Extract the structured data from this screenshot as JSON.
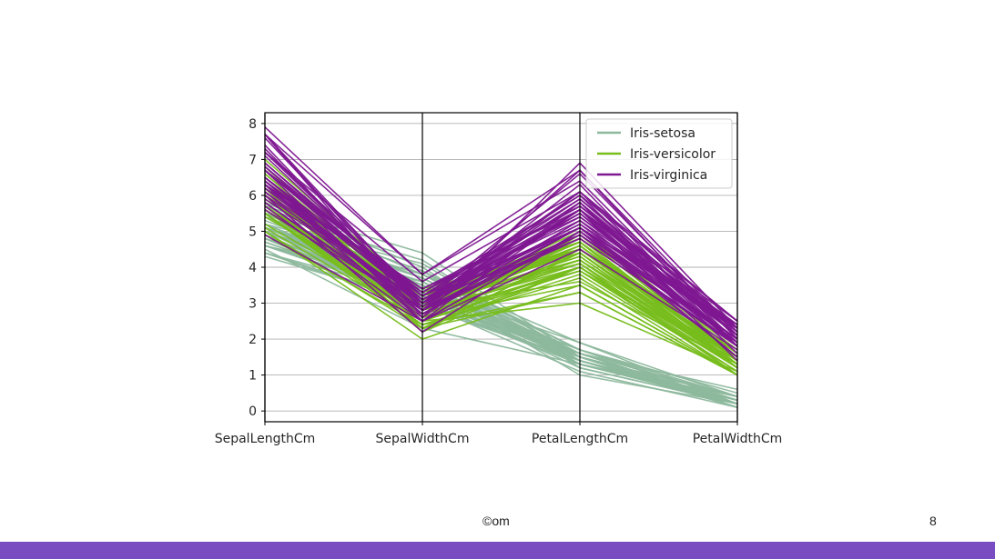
{
  "slide": {
    "footer_text": "©om",
    "page_number": "8",
    "bar_color": "#7a4cc2"
  },
  "chart_data": {
    "type": "parallel_coordinates",
    "axes": [
      "SepalLengthCm",
      "SepalWidthCm",
      "PetalLengthCm",
      "PetalWidthCm"
    ],
    "ylim": [
      -0.3,
      8.3
    ],
    "yticks": [
      0,
      1,
      2,
      3,
      4,
      5,
      6,
      7,
      8
    ],
    "grid": true,
    "legend_position": "top-right",
    "series": [
      {
        "name": "Iris-setosa",
        "color": "#8db89d",
        "lines": [
          [
            5.1,
            3.5,
            1.4,
            0.2
          ],
          [
            4.9,
            3.0,
            1.4,
            0.2
          ],
          [
            4.7,
            3.2,
            1.3,
            0.2
          ],
          [
            4.6,
            3.1,
            1.5,
            0.2
          ],
          [
            5.0,
            3.6,
            1.4,
            0.2
          ],
          [
            5.4,
            3.9,
            1.7,
            0.4
          ],
          [
            4.6,
            3.4,
            1.4,
            0.3
          ],
          [
            5.0,
            3.4,
            1.5,
            0.2
          ],
          [
            4.4,
            2.9,
            1.4,
            0.2
          ],
          [
            4.9,
            3.1,
            1.5,
            0.1
          ],
          [
            5.4,
            3.7,
            1.5,
            0.2
          ],
          [
            4.8,
            3.4,
            1.6,
            0.2
          ],
          [
            4.8,
            3.0,
            1.4,
            0.1
          ],
          [
            4.3,
            3.0,
            1.1,
            0.1
          ],
          [
            5.8,
            4.0,
            1.2,
            0.2
          ],
          [
            5.7,
            4.4,
            1.5,
            0.4
          ],
          [
            5.4,
            3.9,
            1.3,
            0.4
          ],
          [
            5.1,
            3.5,
            1.4,
            0.3
          ],
          [
            5.7,
            3.8,
            1.7,
            0.3
          ],
          [
            5.1,
            3.8,
            1.5,
            0.3
          ],
          [
            5.4,
            3.4,
            1.7,
            0.2
          ],
          [
            5.1,
            3.7,
            1.5,
            0.4
          ],
          [
            4.6,
            3.6,
            1.0,
            0.2
          ],
          [
            5.1,
            3.3,
            1.7,
            0.5
          ],
          [
            4.8,
            3.4,
            1.9,
            0.2
          ],
          [
            5.0,
            3.0,
            1.6,
            0.2
          ],
          [
            5.0,
            3.4,
            1.6,
            0.4
          ],
          [
            5.2,
            3.5,
            1.5,
            0.2
          ],
          [
            5.2,
            3.4,
            1.4,
            0.2
          ],
          [
            4.7,
            3.2,
            1.6,
            0.2
          ],
          [
            4.8,
            3.1,
            1.6,
            0.2
          ],
          [
            5.4,
            3.4,
            1.5,
            0.4
          ],
          [
            5.2,
            4.1,
            1.5,
            0.1
          ],
          [
            5.5,
            4.2,
            1.4,
            0.2
          ],
          [
            4.9,
            3.1,
            1.5,
            0.1
          ],
          [
            5.0,
            3.2,
            1.2,
            0.2
          ],
          [
            5.5,
            3.5,
            1.3,
            0.2
          ],
          [
            4.4,
            3.0,
            1.3,
            0.2
          ],
          [
            5.1,
            3.4,
            1.5,
            0.2
          ],
          [
            5.0,
            3.5,
            1.3,
            0.3
          ],
          [
            4.5,
            2.3,
            1.3,
            0.3
          ],
          [
            4.4,
            3.2,
            1.3,
            0.2
          ],
          [
            5.0,
            3.5,
            1.6,
            0.6
          ],
          [
            5.1,
            3.8,
            1.9,
            0.4
          ],
          [
            4.8,
            3.0,
            1.4,
            0.3
          ],
          [
            5.1,
            3.8,
            1.6,
            0.2
          ],
          [
            4.6,
            3.2,
            1.4,
            0.2
          ],
          [
            5.3,
            3.7,
            1.5,
            0.2
          ],
          [
            5.0,
            3.3,
            1.4,
            0.2
          ]
        ]
      },
      {
        "name": "Iris-versicolor",
        "color": "#77bd1c",
        "lines": [
          [
            7.0,
            3.2,
            4.7,
            1.4
          ],
          [
            6.4,
            3.2,
            4.5,
            1.5
          ],
          [
            6.9,
            3.1,
            4.9,
            1.5
          ],
          [
            5.5,
            2.3,
            4.0,
            1.3
          ],
          [
            6.5,
            2.8,
            4.6,
            1.5
          ],
          [
            5.7,
            2.8,
            4.5,
            1.3
          ],
          [
            6.3,
            3.3,
            4.7,
            1.6
          ],
          [
            4.9,
            2.4,
            3.3,
            1.0
          ],
          [
            6.6,
            2.9,
            4.6,
            1.3
          ],
          [
            5.2,
            2.7,
            3.9,
            1.4
          ],
          [
            5.0,
            2.0,
            3.5,
            1.0
          ],
          [
            5.9,
            3.0,
            4.2,
            1.5
          ],
          [
            6.0,
            2.2,
            4.0,
            1.0
          ],
          [
            6.1,
            2.9,
            4.7,
            1.4
          ],
          [
            5.6,
            2.9,
            3.6,
            1.3
          ],
          [
            6.7,
            3.1,
            4.4,
            1.4
          ],
          [
            5.6,
            3.0,
            4.5,
            1.5
          ],
          [
            5.8,
            2.7,
            4.1,
            1.0
          ],
          [
            6.2,
            2.2,
            4.5,
            1.5
          ],
          [
            5.6,
            2.5,
            3.9,
            1.1
          ],
          [
            5.9,
            3.2,
            4.8,
            1.8
          ],
          [
            6.1,
            2.8,
            4.0,
            1.3
          ],
          [
            6.3,
            2.5,
            4.9,
            1.5
          ],
          [
            6.1,
            2.8,
            4.7,
            1.2
          ],
          [
            6.4,
            2.9,
            4.3,
            1.3
          ],
          [
            6.6,
            3.0,
            4.4,
            1.4
          ],
          [
            6.8,
            2.8,
            4.8,
            1.4
          ],
          [
            6.7,
            3.0,
            5.0,
            1.7
          ],
          [
            6.0,
            2.9,
            4.5,
            1.5
          ],
          [
            5.7,
            2.6,
            3.5,
            1.0
          ],
          [
            5.5,
            2.4,
            3.8,
            1.1
          ],
          [
            5.5,
            2.4,
            3.7,
            1.0
          ],
          [
            5.8,
            2.7,
            3.9,
            1.2
          ],
          [
            6.0,
            2.7,
            5.1,
            1.6
          ],
          [
            5.4,
            3.0,
            4.5,
            1.5
          ],
          [
            6.0,
            3.4,
            4.5,
            1.6
          ],
          [
            6.7,
            3.1,
            4.7,
            1.5
          ],
          [
            6.3,
            2.3,
            4.4,
            1.3
          ],
          [
            5.6,
            3.0,
            4.1,
            1.3
          ],
          [
            5.5,
            2.5,
            4.0,
            1.3
          ],
          [
            5.5,
            2.6,
            4.4,
            1.2
          ],
          [
            6.1,
            3.0,
            4.6,
            1.4
          ],
          [
            5.8,
            2.6,
            4.0,
            1.2
          ],
          [
            5.0,
            2.3,
            3.3,
            1.0
          ],
          [
            5.6,
            2.7,
            4.2,
            1.3
          ],
          [
            5.7,
            3.0,
            4.2,
            1.2
          ],
          [
            5.7,
            2.9,
            4.2,
            1.3
          ],
          [
            6.2,
            2.9,
            4.3,
            1.3
          ],
          [
            5.1,
            2.5,
            3.0,
            1.1
          ],
          [
            5.7,
            2.8,
            4.1,
            1.3
          ]
        ]
      },
      {
        "name": "Iris-virginica",
        "color": "#7e1791",
        "lines": [
          [
            6.3,
            3.3,
            6.0,
            2.5
          ],
          [
            5.8,
            2.7,
            5.1,
            1.9
          ],
          [
            7.1,
            3.0,
            5.9,
            2.1
          ],
          [
            6.3,
            2.9,
            5.6,
            1.8
          ],
          [
            6.5,
            3.0,
            5.8,
            2.2
          ],
          [
            7.6,
            3.0,
            6.6,
            2.1
          ],
          [
            4.9,
            2.5,
            4.5,
            1.7
          ],
          [
            7.3,
            2.9,
            6.3,
            1.8
          ],
          [
            6.7,
            2.5,
            5.8,
            1.8
          ],
          [
            7.2,
            3.6,
            6.1,
            2.5
          ],
          [
            6.5,
            3.2,
            5.1,
            2.0
          ],
          [
            6.4,
            2.7,
            5.3,
            1.9
          ],
          [
            6.8,
            3.0,
            5.5,
            2.1
          ],
          [
            5.7,
            2.5,
            5.0,
            2.0
          ],
          [
            5.8,
            2.8,
            5.1,
            2.4
          ],
          [
            6.4,
            3.2,
            5.3,
            2.3
          ],
          [
            6.5,
            3.0,
            5.5,
            1.8
          ],
          [
            7.7,
            3.8,
            6.7,
            2.2
          ],
          [
            7.7,
            2.6,
            6.9,
            2.3
          ],
          [
            6.0,
            2.2,
            5.0,
            1.5
          ],
          [
            6.9,
            3.2,
            5.7,
            2.3
          ],
          [
            5.6,
            2.8,
            4.9,
            2.0
          ],
          [
            7.7,
            2.8,
            6.7,
            2.0
          ],
          [
            6.3,
            2.7,
            4.9,
            1.8
          ],
          [
            6.7,
            3.3,
            5.7,
            2.1
          ],
          [
            7.2,
            3.2,
            6.0,
            1.8
          ],
          [
            6.2,
            2.8,
            4.8,
            1.8
          ],
          [
            6.1,
            3.0,
            4.9,
            1.8
          ],
          [
            6.4,
            2.8,
            5.6,
            2.1
          ],
          [
            7.2,
            3.0,
            5.8,
            1.6
          ],
          [
            7.4,
            2.8,
            6.1,
            1.9
          ],
          [
            7.9,
            3.8,
            6.4,
            2.0
          ],
          [
            6.4,
            2.8,
            5.6,
            2.2
          ],
          [
            6.3,
            2.8,
            5.1,
            1.5
          ],
          [
            6.1,
            2.6,
            5.6,
            1.4
          ],
          [
            7.7,
            3.0,
            6.1,
            2.3
          ],
          [
            6.3,
            3.4,
            5.6,
            2.4
          ],
          [
            6.4,
            3.1,
            5.5,
            1.8
          ],
          [
            6.0,
            3.0,
            4.8,
            1.8
          ],
          [
            6.9,
            3.1,
            5.4,
            2.1
          ],
          [
            6.7,
            3.1,
            5.6,
            2.4
          ],
          [
            6.9,
            3.1,
            5.1,
            2.3
          ],
          [
            6.8,
            3.2,
            5.9,
            2.3
          ],
          [
            6.7,
            3.3,
            5.7,
            2.5
          ],
          [
            6.7,
            3.0,
            5.2,
            2.3
          ],
          [
            6.3,
            2.5,
            5.0,
            1.9
          ],
          [
            6.5,
            3.0,
            5.2,
            2.0
          ],
          [
            6.2,
            3.4,
            5.4,
            2.3
          ],
          [
            5.9,
            3.0,
            5.1,
            1.8
          ]
        ]
      }
    ]
  }
}
